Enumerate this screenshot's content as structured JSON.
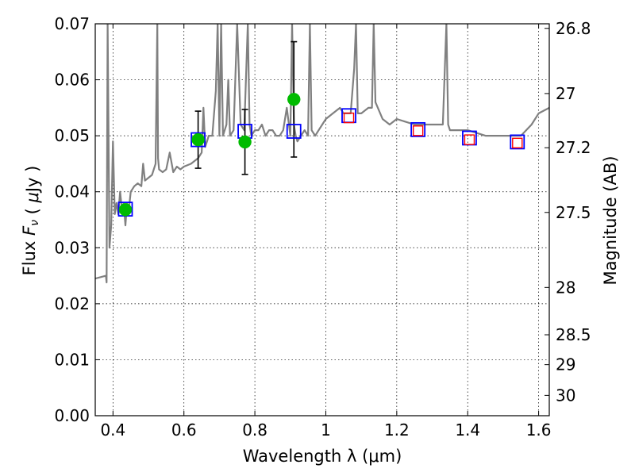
{
  "chart_data": {
    "type": "scatter",
    "xlabel": "Wavelength  λ (μm)",
    "ylabel": "Flux  F_ν  ( μJy )",
    "y2label": "Magnitude (AB)",
    "xlim": [
      0.35,
      1.63
    ],
    "ylim": [
      0.0,
      0.07
    ],
    "grid": true,
    "x_ticks": [
      {
        "value": 0.4,
        "label": "0.4"
      },
      {
        "value": 0.6,
        "label": "0.6"
      },
      {
        "value": 0.8,
        "label": "0.8"
      },
      {
        "value": 1.0,
        "label": "1"
      },
      {
        "value": 1.2,
        "label": "1.2"
      },
      {
        "value": 1.4,
        "label": "1.4"
      },
      {
        "value": 1.6,
        "label": "1.6"
      }
    ],
    "y_ticks": [
      {
        "value": 0.0,
        "label": "0.00"
      },
      {
        "value": 0.01,
        "label": "0.01"
      },
      {
        "value": 0.02,
        "label": "0.02"
      },
      {
        "value": 0.03,
        "label": "0.03"
      },
      {
        "value": 0.04,
        "label": "0.04"
      },
      {
        "value": 0.05,
        "label": "0.05"
      },
      {
        "value": 0.06,
        "label": "0.06"
      },
      {
        "value": 0.07,
        "label": "0.07"
      }
    ],
    "magnitude_ticks": [
      {
        "value": 26.8,
        "label": "26.8"
      },
      {
        "value": 27.0,
        "label": "27"
      },
      {
        "value": 27.2,
        "label": "27.2"
      },
      {
        "value": 27.5,
        "label": "27.5"
      },
      {
        "value": 28.0,
        "label": "28"
      },
      {
        "value": 28.5,
        "label": "28.5"
      },
      {
        "value": 29.0,
        "label": "29"
      },
      {
        "value": 30.0,
        "label": "30"
      }
    ],
    "series": [
      {
        "kind": "spectrum",
        "color": "#808080",
        "x": [
          0.35,
          0.38,
          0.382,
          0.385,
          0.39,
          0.395,
          0.4,
          0.405,
          0.41,
          0.415,
          0.42,
          0.425,
          0.43,
          0.435,
          0.44,
          0.445,
          0.45,
          0.46,
          0.47,
          0.48,
          0.485,
          0.49,
          0.5,
          0.51,
          0.52,
          0.525,
          0.527,
          0.53,
          0.54,
          0.55,
          0.56,
          0.57,
          0.58,
          0.59,
          0.6,
          0.62,
          0.64,
          0.65,
          0.655,
          0.66,
          0.665,
          0.67,
          0.68,
          0.69,
          0.695,
          0.7,
          0.705,
          0.71,
          0.72,
          0.725,
          0.73,
          0.74,
          0.75,
          0.76,
          0.77,
          0.78,
          0.785,
          0.79,
          0.8,
          0.81,
          0.82,
          0.83,
          0.84,
          0.85,
          0.86,
          0.87,
          0.88,
          0.89,
          0.9,
          0.905,
          0.91,
          0.915,
          0.92,
          0.93,
          0.94,
          0.95,
          0.955,
          0.96,
          0.97,
          0.98,
          0.99,
          1.0,
          1.02,
          1.04,
          1.05,
          1.07,
          1.08,
          1.085,
          1.09,
          1.1,
          1.12,
          1.13,
          1.135,
          1.14,
          1.16,
          1.18,
          1.2,
          1.25,
          1.3,
          1.33,
          1.34,
          1.345,
          1.35,
          1.37,
          1.4,
          1.45,
          1.5,
          1.55,
          1.58,
          1.6,
          1.63
        ],
        "y": [
          0.0245,
          0.025,
          0.0238,
          0.07,
          0.03,
          0.034,
          0.049,
          0.036,
          0.038,
          0.036,
          0.04,
          0.037,
          0.038,
          0.034,
          0.038,
          0.037,
          0.04,
          0.041,
          0.0415,
          0.041,
          0.045,
          0.042,
          0.0425,
          0.043,
          0.045,
          0.07,
          0.046,
          0.044,
          0.0435,
          0.044,
          0.047,
          0.0435,
          0.0445,
          0.044,
          0.0445,
          0.045,
          0.046,
          0.047,
          0.055,
          0.048,
          0.049,
          0.05,
          0.05,
          0.058,
          0.07,
          0.05,
          0.07,
          0.05,
          0.052,
          0.06,
          0.05,
          0.051,
          0.07,
          0.052,
          0.051,
          0.07,
          0.052,
          0.05,
          0.051,
          0.051,
          0.052,
          0.05,
          0.051,
          0.051,
          0.05,
          0.05,
          0.051,
          0.055,
          0.05,
          0.07,
          0.052,
          0.05,
          0.049,
          0.05,
          0.051,
          0.05,
          0.07,
          0.051,
          0.05,
          0.051,
          0.052,
          0.053,
          0.054,
          0.055,
          0.054,
          0.054,
          0.062,
          0.07,
          0.054,
          0.054,
          0.055,
          0.055,
          0.07,
          0.056,
          0.053,
          0.052,
          0.053,
          0.052,
          0.052,
          0.052,
          0.07,
          0.052,
          0.051,
          0.051,
          0.051,
          0.05,
          0.05,
          0.05,
          0.052,
          0.054,
          0.055
        ]
      },
      {
        "kind": "model-photometry",
        "marker": "square",
        "color": "#0000ff",
        "x": [
          0.435,
          0.64,
          0.772,
          0.91,
          1.065,
          1.26,
          1.405,
          1.54
        ],
        "y": [
          0.0369,
          0.0493,
          0.0508,
          0.0508,
          0.0536,
          0.0511,
          0.0496,
          0.0489
        ]
      },
      {
        "kind": "alt-photometry",
        "marker": "square",
        "color": "#ff0000",
        "x": [
          1.065,
          1.26,
          1.405,
          1.54
        ],
        "y": [
          0.0532,
          0.0509,
          0.0493,
          0.0487
        ]
      },
      {
        "kind": "observed",
        "marker": "circle",
        "color": "#00bb00",
        "x": [
          0.435,
          0.64,
          0.772,
          0.91
        ],
        "y": [
          0.0368,
          0.0493,
          0.0489,
          0.0565
        ],
        "err": [
          0.0,
          0.0051,
          0.0058,
          0.0103
        ]
      }
    ]
  }
}
